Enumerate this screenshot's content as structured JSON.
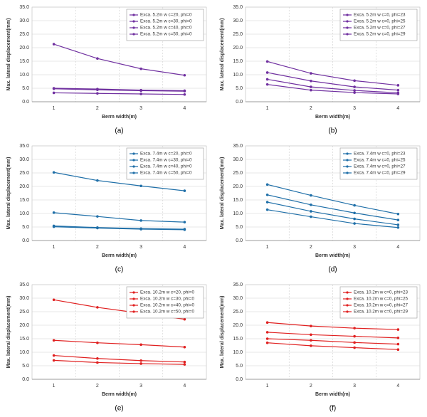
{
  "chart_data": [
    {
      "type": "line",
      "caption": "(a)",
      "x_label": "Berm width(m)",
      "y_label": "Max. lateral displacement(mm)",
      "categories": [
        "1",
        "2",
        "3",
        "4"
      ],
      "ylim": [
        0,
        35
      ],
      "yticks": [
        {
          "value": 0,
          "label": "0.0"
        },
        {
          "value": 5,
          "label": "5.0"
        },
        {
          "value": 10,
          "label": "10.0"
        },
        {
          "value": 15,
          "label": "15.0"
        },
        {
          "value": 20,
          "label": "20.0"
        },
        {
          "value": 25,
          "label": "25.0"
        },
        {
          "value": 30,
          "label": "30.0"
        },
        {
          "value": 35,
          "label": "35.0"
        }
      ],
      "grid": true,
      "legend": "upper right",
      "series": [
        {
          "name": "Exca. 5.2m w c=20, phi=0",
          "color": "#7030a0",
          "values": [
            21.3,
            16.0,
            12.2,
            9.8
          ]
        },
        {
          "name": "Exca. 5.2m w c=30, phi=0",
          "color": "#7030a0",
          "values": [
            5.0,
            4.7,
            4.3,
            4.1
          ]
        },
        {
          "name": "Exca. 5.2m w c=40, phi=0",
          "color": "#7030a0",
          "values": [
            4.8,
            4.4,
            4.1,
            3.9
          ]
        },
        {
          "name": "Exca. 5.2m w c=50, phi=0",
          "color": "#7030a0",
          "values": [
            3.3,
            3.1,
            2.9,
            2.7
          ]
        }
      ]
    },
    {
      "type": "line",
      "caption": "(b)",
      "x_label": "Berm width(m)",
      "y_label": "Max. lateral displacement(mm)",
      "categories": [
        "1",
        "2",
        "3",
        "4"
      ],
      "ylim": [
        0,
        35
      ],
      "yticks": [
        {
          "value": 0,
          "label": "0.0"
        },
        {
          "value": 5,
          "label": "5.0"
        },
        {
          "value": 10,
          "label": "10.0"
        },
        {
          "value": 15,
          "label": "15.0"
        },
        {
          "value": 20,
          "label": "20.0"
        },
        {
          "value": 25,
          "label": "25.0"
        },
        {
          "value": 30,
          "label": "30.0"
        },
        {
          "value": 35,
          "label": "35.0"
        }
      ],
      "grid": true,
      "legend": "upper right",
      "series": [
        {
          "name": "Exca. 5.2m w c=0, phi=23",
          "color": "#7030a0",
          "values": [
            14.9,
            10.5,
            7.8,
            6.1
          ]
        },
        {
          "name": "Exca. 5.2m w c=0, phi=25",
          "color": "#7030a0",
          "values": [
            10.8,
            7.7,
            5.5,
            4.3
          ]
        },
        {
          "name": "Exca. 5.2m w c=0, phi=27",
          "color": "#7030a0",
          "values": [
            8.3,
            5.5,
            4.2,
            3.3
          ]
        },
        {
          "name": "Exca. 5.2m w c=0, phi=29",
          "color": "#7030a0",
          "values": [
            6.4,
            4.3,
            3.4,
            2.9
          ]
        }
      ]
    },
    {
      "type": "line",
      "caption": "(c)",
      "x_label": "Berm width(m)",
      "y_label": "Max. lateral displacement(mm)",
      "categories": [
        "1",
        "2",
        "3",
        "4"
      ],
      "ylim": [
        0,
        35
      ],
      "yticks": [
        {
          "value": 0,
          "label": "0.0"
        },
        {
          "value": 5,
          "label": "5.0"
        },
        {
          "value": 10,
          "label": "10.0"
        },
        {
          "value": 15,
          "label": "15.0"
        },
        {
          "value": 20,
          "label": "20.0"
        },
        {
          "value": 25,
          "label": "25.0"
        },
        {
          "value": 30,
          "label": "30.0"
        },
        {
          "value": 35,
          "label": "35.0"
        }
      ],
      "grid": true,
      "legend": "upper right",
      "series": [
        {
          "name": "Exca. 7.4m w c=20, phi=0",
          "color": "#1f6fa8",
          "values": [
            25.2,
            22.2,
            20.2,
            18.4
          ]
        },
        {
          "name": "Exca. 7.4m w c=30, phi=0",
          "color": "#1f6fa8",
          "values": [
            10.3,
            8.9,
            7.4,
            6.8
          ]
        },
        {
          "name": "Exca. 7.4m w c=40, phi=0",
          "color": "#1f6fa8",
          "values": [
            5.4,
            4.8,
            4.4,
            4.2
          ]
        },
        {
          "name": "Exca. 7.4m w c=50, phi=0",
          "color": "#1f6fa8",
          "values": [
            5.1,
            4.6,
            4.2,
            4.0
          ]
        }
      ]
    },
    {
      "type": "line",
      "caption": "(d)",
      "x_label": "Berm width(m)",
      "y_label": "Max. lateral displacement(mm)",
      "categories": [
        "1",
        "2",
        "3",
        "4"
      ],
      "ylim": [
        0,
        35
      ],
      "yticks": [
        {
          "value": 0,
          "label": "0.0"
        },
        {
          "value": 5,
          "label": "5.0"
        },
        {
          "value": 10,
          "label": "10.0"
        },
        {
          "value": 15,
          "label": "15.0"
        },
        {
          "value": 20,
          "label": "20.0"
        },
        {
          "value": 25,
          "label": "25.0"
        },
        {
          "value": 30,
          "label": "30.0"
        },
        {
          "value": 35,
          "label": "35.0"
        }
      ],
      "grid": true,
      "legend": "upper right",
      "series": [
        {
          "name": "Exca. 7.4m w c=0, phi=23",
          "color": "#1f6fa8",
          "values": [
            20.7,
            16.7,
            13.0,
            9.8
          ]
        },
        {
          "name": "Exca. 7.4m w c=0, phi=25",
          "color": "#1f6fa8",
          "values": [
            16.9,
            13.2,
            10.2,
            7.6
          ]
        },
        {
          "name": "Exca. 7.4m w c=0, phi=27",
          "color": "#1f6fa8",
          "values": [
            14.2,
            10.8,
            8.0,
            5.8
          ]
        },
        {
          "name": "Exca. 7.4m w c=0, phi=29",
          "color": "#1f6fa8",
          "values": [
            11.4,
            8.8,
            6.3,
            4.8
          ]
        }
      ]
    },
    {
      "type": "line",
      "caption": "(e)",
      "x_label": "Berm width(m)",
      "y_label": "Max. lateral displacement(mm)",
      "categories": [
        "1",
        "2",
        "3",
        "4"
      ],
      "ylim": [
        0,
        35
      ],
      "yticks": [
        {
          "value": 0,
          "label": "0.0"
        },
        {
          "value": 5,
          "label": "5.0"
        },
        {
          "value": 10,
          "label": "10.0"
        },
        {
          "value": 15,
          "label": "15.0"
        },
        {
          "value": 20,
          "label": "20.0"
        },
        {
          "value": 25,
          "label": "25.0"
        },
        {
          "value": 30,
          "label": "30.0"
        },
        {
          "value": 35,
          "label": "35.0"
        }
      ],
      "grid": true,
      "legend": "upper right",
      "series": [
        {
          "name": "Exca. 10.2m w c=20, phi=0",
          "color": "#e02020",
          "values": [
            29.4,
            26.6,
            24.4,
            22.2
          ]
        },
        {
          "name": "Exca. 10.2m w c=30, phi=0",
          "color": "#e02020",
          "values": [
            14.4,
            13.5,
            12.8,
            11.9
          ]
        },
        {
          "name": "Exca. 10.2m w c=40, phi=0",
          "color": "#e02020",
          "values": [
            8.8,
            7.7,
            6.9,
            6.4
          ]
        },
        {
          "name": "Exca. 10.2m w c=50, phi=0",
          "color": "#e02020",
          "values": [
            7.0,
            6.2,
            5.8,
            5.5
          ]
        }
      ]
    },
    {
      "type": "line",
      "caption": "(f)",
      "x_label": "Berm width(m)",
      "y_label": "Max. lateral displacement(mm)",
      "categories": [
        "1",
        "2",
        "3",
        "4"
      ],
      "ylim": [
        0,
        35
      ],
      "yticks": [
        {
          "value": 0,
          "label": "0.0"
        },
        {
          "value": 5,
          "label": "5.0"
        },
        {
          "value": 10,
          "label": "10.0"
        },
        {
          "value": 15,
          "label": "15.0"
        },
        {
          "value": 20,
          "label": "20.0"
        },
        {
          "value": 25,
          "label": "25.0"
        },
        {
          "value": 30,
          "label": "30.0"
        },
        {
          "value": 35,
          "label": "35.0"
        }
      ],
      "grid": true,
      "legend": "upper right",
      "series": [
        {
          "name": "Exca. 10.2m w c=0, phi=23",
          "color": "#e02020",
          "values": [
            21.0,
            19.7,
            18.9,
            18.4
          ]
        },
        {
          "name": "Exca. 10.2m w c=0, phi=25",
          "color": "#e02020",
          "values": [
            17.4,
            16.5,
            15.9,
            15.3
          ]
        },
        {
          "name": "Exca. 10.2m w c=0, phi=27",
          "color": "#e02020",
          "values": [
            15.0,
            14.4,
            13.6,
            13.0
          ]
        },
        {
          "name": "Exca. 10.2m w c=0, phi=29",
          "color": "#e02020",
          "values": [
            13.5,
            12.4,
            11.7,
            11.0
          ]
        }
      ]
    }
  ]
}
